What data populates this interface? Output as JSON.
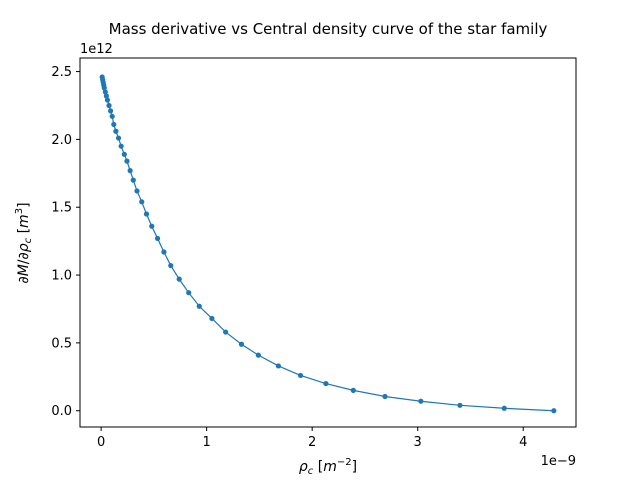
{
  "chart_data": {
    "type": "line",
    "title": "Mass derivative vs Central density curve of the star family",
    "xlabel": "ρc [m⁻²]",
    "ylabel": "∂M/∂ρc [m³]",
    "x_offset_label": "1e−9",
    "y_offset_label": "1e12",
    "xlim": [
      -0.2,
      4.5
    ],
    "ylim": [
      -0.12,
      2.6
    ],
    "x_ticks": [
      0,
      1,
      2,
      3,
      4
    ],
    "y_ticks": [
      0.0,
      0.5,
      1.0,
      1.5,
      2.0,
      2.5
    ],
    "x_tick_labels": [
      "0",
      "1",
      "2",
      "3",
      "4"
    ],
    "y_tick_labels": [
      "0.0",
      "0.5",
      "1.0",
      "1.5",
      "2.0",
      "2.5"
    ],
    "grid": false,
    "series": [
      {
        "color": "#1f77b4",
        "marker": "circle",
        "points": [
          [
            0.01,
            2.46
          ],
          [
            0.015,
            2.44
          ],
          [
            0.02,
            2.42
          ],
          [
            0.025,
            2.4
          ],
          [
            0.03,
            2.38
          ],
          [
            0.04,
            2.35
          ],
          [
            0.05,
            2.32
          ],
          [
            0.06,
            2.29
          ],
          [
            0.075,
            2.25
          ],
          [
            0.09,
            2.21
          ],
          [
            0.105,
            2.17
          ],
          [
            0.12,
            2.11
          ],
          [
            0.14,
            2.06
          ],
          [
            0.165,
            2.01
          ],
          [
            0.19,
            1.95
          ],
          [
            0.22,
            1.89
          ],
          [
            0.245,
            1.84
          ],
          [
            0.275,
            1.77
          ],
          [
            0.305,
            1.7
          ],
          [
            0.34,
            1.62
          ],
          [
            0.385,
            1.54
          ],
          [
            0.43,
            1.45
          ],
          [
            0.48,
            1.36
          ],
          [
            0.535,
            1.27
          ],
          [
            0.595,
            1.17
          ],
          [
            0.66,
            1.07
          ],
          [
            0.74,
            0.97
          ],
          [
            0.83,
            0.87
          ],
          [
            0.93,
            0.77
          ],
          [
            1.05,
            0.68
          ],
          [
            1.18,
            0.58
          ],
          [
            1.33,
            0.49
          ],
          [
            1.49,
            0.41
          ],
          [
            1.68,
            0.33
          ],
          [
            1.89,
            0.26
          ],
          [
            2.13,
            0.2
          ],
          [
            2.39,
            0.15
          ],
          [
            2.69,
            0.105
          ],
          [
            3.03,
            0.07
          ],
          [
            3.4,
            0.04
          ],
          [
            3.82,
            0.018
          ],
          [
            4.29,
            0.0
          ]
        ]
      }
    ]
  }
}
